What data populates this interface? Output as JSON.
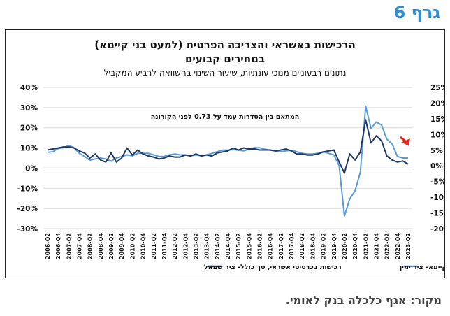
{
  "page": {
    "header": "גרף 6",
    "source": "מקור: אגף כלכלה בנק לאומי."
  },
  "chart_data": {
    "type": "line",
    "title_line1": "הרכישות באשראי והצריכה הפרטית (למעט בני קיימא)",
    "title_line2": "במחירים קבועים",
    "subtitle": "נתונים רבעוניים מנוכי עונתיות, שיעור השינוי בהשוואה לרביע המקביל",
    "annotation": "המתאם בין הסדרות עמד על 0.73 לפני הקורונה",
    "left_axis": {
      "ticks": [
        "40%",
        "30%",
        "20%",
        "10%",
        "0%",
        "-10%",
        "-20%",
        "-30%"
      ],
      "ylim": [
        -30,
        40
      ]
    },
    "right_axis": {
      "ticks": [
        "25%",
        "20%",
        "15%",
        "10%",
        "5%",
        "0%",
        "-5%",
        "-10%",
        "-15%",
        "-20%"
      ],
      "ylim": [
        -20,
        25
      ]
    },
    "x_tick_labels": [
      "2006-Q2",
      "2006-Q4",
      "2007-Q2",
      "2007-Q4",
      "2008-Q2",
      "2008-Q4",
      "2009-Q2",
      "2009-Q4",
      "2010-Q2",
      "2010-Q4",
      "2011-Q2",
      "2011-Q4",
      "2012-Q2",
      "2012-Q4",
      "2013-Q2",
      "2013-Q4",
      "2014-Q2",
      "2014-Q4",
      "2015-Q2",
      "2015-Q4",
      "2016-Q2",
      "2016-Q4",
      "2017-Q2",
      "2017-Q4",
      "2018-Q2",
      "2018-Q4",
      "2019-Q2",
      "2019-Q4",
      "2020-Q2",
      "2020-Q4",
      "2021-Q2",
      "2021-Q4",
      "2022-Q2",
      "2022-Q4",
      "2023-Q2"
    ],
    "x": [
      "2006-Q2",
      "2006-Q3",
      "2006-Q4",
      "2007-Q1",
      "2007-Q2",
      "2007-Q3",
      "2007-Q4",
      "2008-Q1",
      "2008-Q2",
      "2008-Q3",
      "2008-Q4",
      "2009-Q1",
      "2009-Q2",
      "2009-Q3",
      "2009-Q4",
      "2010-Q1",
      "2010-Q2",
      "2010-Q3",
      "2010-Q4",
      "2011-Q1",
      "2011-Q2",
      "2011-Q3",
      "2011-Q4",
      "2012-Q1",
      "2012-Q2",
      "2012-Q3",
      "2012-Q4",
      "2013-Q1",
      "2013-Q2",
      "2013-Q3",
      "2013-Q4",
      "2014-Q1",
      "2014-Q2",
      "2014-Q3",
      "2014-Q4",
      "2015-Q1",
      "2015-Q2",
      "2015-Q3",
      "2015-Q4",
      "2016-Q1",
      "2016-Q2",
      "2016-Q3",
      "2016-Q4",
      "2017-Q1",
      "2017-Q2",
      "2017-Q3",
      "2017-Q4",
      "2018-Q1",
      "2018-Q2",
      "2018-Q3",
      "2018-Q4",
      "2019-Q1",
      "2019-Q2",
      "2019-Q3",
      "2019-Q4",
      "2020-Q1",
      "2020-Q2",
      "2020-Q3",
      "2020-Q4",
      "2021-Q1",
      "2021-Q2",
      "2021-Q3",
      "2021-Q4",
      "2022-Q1",
      "2022-Q2",
      "2022-Q3",
      "2022-Q4",
      "2023-Q1",
      "2023-Q2"
    ],
    "series": [
      {
        "name": "הוצאה לצריכה פרטית, למעט בני קיימא- ציר ימין",
        "axis": "right",
        "color": "#5b9bd5",
        "values": [
          4.3,
          4.5,
          5.5,
          5.8,
          6.5,
          5.8,
          4.0,
          3.0,
          1.8,
          2.2,
          2.5,
          2.2,
          1.5,
          2.5,
          3.0,
          3.5,
          3.2,
          4.0,
          4.0,
          4.0,
          3.5,
          3.0,
          3.0,
          3.5,
          3.8,
          3.5,
          3.5,
          3.2,
          3.5,
          3.2,
          3.5,
          4.0,
          4.5,
          5.0,
          5.0,
          5.2,
          5.0,
          4.8,
          5.3,
          5.8,
          5.8,
          5.3,
          5.0,
          4.8,
          4.5,
          4.8,
          5.0,
          4.5,
          4.0,
          3.8,
          3.8,
          4.0,
          4.5,
          4.0,
          3.5,
          0.0,
          -16.0,
          -10.5,
          -8.0,
          -2.0,
          19.0,
          12.0,
          14.0,
          13.0,
          8.5,
          7.0,
          3.0,
          2.5,
          2.5
        ]
      },
      {
        "name": "רכישות בכרטיסי אשראי, סך כולל- ציר שמאל",
        "axis": "left",
        "color": "#1f3864",
        "values": [
          9.0,
          9.5,
          10.0,
          10.5,
          10.5,
          10.0,
          8.5,
          7.5,
          5.0,
          7.0,
          4.0,
          3.0,
          7.5,
          3.0,
          5.0,
          10.0,
          6.5,
          9.0,
          7.0,
          6.0,
          5.5,
          4.5,
          5.0,
          6.0,
          5.5,
          5.5,
          6.5,
          6.0,
          7.0,
          6.0,
          6.5,
          6.0,
          7.5,
          8.0,
          8.5,
          10.0,
          9.0,
          10.0,
          9.5,
          9.5,
          9.0,
          9.0,
          9.0,
          8.5,
          9.0,
          9.5,
          8.5,
          7.0,
          7.0,
          6.5,
          6.5,
          7.0,
          8.0,
          8.5,
          9.0,
          3.0,
          -2.5,
          7.0,
          4.0,
          8.0,
          24.0,
          12.5,
          16.0,
          13.5,
          6.0,
          4.0,
          3.0,
          3.5,
          2.0
        ]
      }
    ],
    "legend": [
      "הוצאה לצריכה פרטית, למעט בני קיימא- ציר ימין",
      "רכישות בכרטיסי אשראי, סך כולל- ציר שמאל"
    ],
    "marker_color": "#e0281e"
  }
}
